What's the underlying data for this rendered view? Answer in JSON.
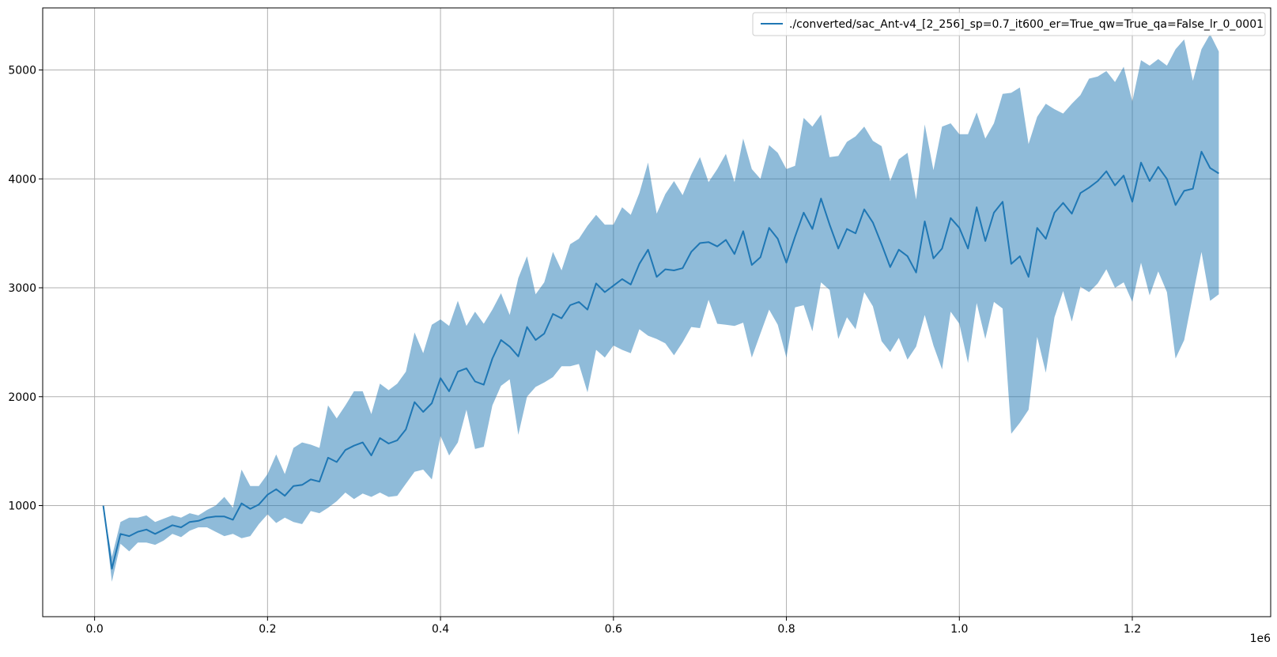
{
  "chart_data": {
    "type": "line",
    "title": "",
    "xlabel": "",
    "ylabel": "",
    "x_offset_label": "1e6",
    "xlim": [
      -0.06,
      1.36
    ],
    "ylim": [
      -20,
      5570
    ],
    "xticks": [
      0.0,
      0.2,
      0.4,
      0.6,
      0.8,
      1.0,
      1.2
    ],
    "xtick_labels": [
      "0.0",
      "0.2",
      "0.4",
      "0.6",
      "0.8",
      "1.0",
      "1.2"
    ],
    "yticks": [
      1000,
      2000,
      3000,
      4000,
      5000
    ],
    "ytick_labels": [
      "1000",
      "2000",
      "3000",
      "4000",
      "5000"
    ],
    "grid": true,
    "legend_position": "top-right",
    "colors": {
      "line": "#1f77b4",
      "band": "#1f77b4",
      "grid": "#b0b0b0"
    },
    "series": [
      {
        "name": "./converted/sac_Ant-v4_[2_256]_sp=0.7_it600_er=True_qw=True_qa=False_lr_0_0001",
        "x": [
          0.01,
          0.02,
          0.03,
          0.04,
          0.05,
          0.06,
          0.07,
          0.08,
          0.09,
          0.1,
          0.11,
          0.12,
          0.13,
          0.14,
          0.15,
          0.16,
          0.17,
          0.18,
          0.19,
          0.2,
          0.21,
          0.22,
          0.23,
          0.24,
          0.25,
          0.26,
          0.27,
          0.28,
          0.29,
          0.3,
          0.31,
          0.32,
          0.33,
          0.34,
          0.35,
          0.36,
          0.37,
          0.38,
          0.39,
          0.4,
          0.41,
          0.42,
          0.43,
          0.44,
          0.45,
          0.46,
          0.47,
          0.48,
          0.49,
          0.5,
          0.51,
          0.52,
          0.53,
          0.54,
          0.55,
          0.56,
          0.57,
          0.58,
          0.59,
          0.6,
          0.61,
          0.62,
          0.63,
          0.64,
          0.65,
          0.66,
          0.67,
          0.68,
          0.69,
          0.7,
          0.71,
          0.72,
          0.73,
          0.74,
          0.75,
          0.76,
          0.77,
          0.78,
          0.79,
          0.8,
          0.81,
          0.82,
          0.83,
          0.84,
          0.85,
          0.86,
          0.87,
          0.88,
          0.89,
          0.9,
          0.91,
          0.92,
          0.93,
          0.94,
          0.95,
          0.96,
          0.97,
          0.98,
          0.99,
          1.0,
          1.01,
          1.02,
          1.03,
          1.04,
          1.05,
          1.06,
          1.07,
          1.08,
          1.09,
          1.1,
          1.11,
          1.12,
          1.13,
          1.14,
          1.15,
          1.16,
          1.17,
          1.18,
          1.19,
          1.2,
          1.21,
          1.22,
          1.23,
          1.24,
          1.25,
          1.26,
          1.27,
          1.28,
          1.29,
          1.3
        ],
        "mean": [
          1000,
          420,
          740,
          720,
          760,
          780,
          740,
          780,
          820,
          800,
          850,
          860,
          890,
          900,
          900,
          870,
          1020,
          970,
          1010,
          1100,
          1150,
          1090,
          1180,
          1190,
          1240,
          1220,
          1440,
          1400,
          1510,
          1550,
          1580,
          1460,
          1620,
          1570,
          1600,
          1700,
          1950,
          1860,
          1940,
          2170,
          2050,
          2230,
          2260,
          2140,
          2110,
          2350,
          2520,
          2460,
          2370,
          2640,
          2520,
          2580,
          2760,
          2720,
          2840,
          2870,
          2800,
          3040,
          2960,
          3020,
          3080,
          3030,
          3220,
          3350,
          3100,
          3170,
          3160,
          3180,
          3330,
          3410,
          3420,
          3380,
          3440,
          3310,
          3520,
          3210,
          3280,
          3550,
          3450,
          3230,
          3470,
          3690,
          3540,
          3820,
          3580,
          3360,
          3540,
          3500,
          3720,
          3600,
          3400,
          3190,
          3350,
          3290,
          3140,
          3610,
          3270,
          3360,
          3640,
          3550,
          3360,
          3740,
          3430,
          3690,
          3790,
          3220,
          3290,
          3100,
          3550,
          3450,
          3690,
          3780,
          3680,
          3870,
          3920,
          3980,
          4070,
          3940,
          4030,
          3790,
          4150,
          3980,
          4110,
          4000,
          3760,
          3890,
          3910,
          4250,
          4100,
          4050
        ],
        "upper": [
          1000,
          530,
          850,
          890,
          890,
          910,
          850,
          880,
          910,
          890,
          930,
          910,
          960,
          1000,
          1080,
          980,
          1330,
          1180,
          1180,
          1290,
          1470,
          1290,
          1530,
          1580,
          1560,
          1530,
          1920,
          1800,
          1920,
          2050,
          2050,
          1840,
          2120,
          2060,
          2120,
          2230,
          2590,
          2400,
          2660,
          2710,
          2650,
          2880,
          2650,
          2780,
          2670,
          2800,
          2950,
          2750,
          3090,
          3290,
          2940,
          3050,
          3330,
          3160,
          3400,
          3450,
          3570,
          3670,
          3580,
          3580,
          3740,
          3670,
          3870,
          4150,
          3680,
          3860,
          3980,
          3850,
          4040,
          4200,
          3970,
          4090,
          4230,
          3970,
          4370,
          4090,
          4000,
          4310,
          4240,
          4090,
          4120,
          4560,
          4480,
          4590,
          4200,
          4210,
          4340,
          4390,
          4480,
          4350,
          4300,
          3980,
          4180,
          4240,
          3810,
          4500,
          4080,
          4480,
          4510,
          4410,
          4410,
          4610,
          4370,
          4510,
          4780,
          4790,
          4840,
          4320,
          4570,
          4690,
          4640,
          4600,
          4690,
          4770,
          4920,
          4940,
          4990,
          4890,
          5030,
          4710,
          5090,
          5040,
          5100,
          5040,
          5190,
          5280,
          4900,
          5190,
          5330,
          5170
        ],
        "lower": [
          1000,
          300,
          650,
          580,
          660,
          660,
          640,
          680,
          740,
          710,
          770,
          800,
          800,
          760,
          720,
          740,
          700,
          720,
          830,
          920,
          840,
          890,
          850,
          830,
          950,
          930,
          980,
          1040,
          1120,
          1060,
          1110,
          1080,
          1120,
          1080,
          1090,
          1200,
          1310,
          1330,
          1240,
          1640,
          1460,
          1580,
          1880,
          1520,
          1540,
          1920,
          2100,
          2160,
          1650,
          2000,
          2090,
          2130,
          2180,
          2280,
          2280,
          2300,
          2040,
          2430,
          2360,
          2470,
          2430,
          2400,
          2620,
          2560,
          2530,
          2490,
          2380,
          2500,
          2640,
          2630,
          2890,
          2670,
          2660,
          2650,
          2680,
          2360,
          2580,
          2800,
          2660,
          2360,
          2820,
          2840,
          2600,
          3050,
          2980,
          2530,
          2730,
          2620,
          2960,
          2830,
          2510,
          2410,
          2540,
          2340,
          2460,
          2750,
          2470,
          2250,
          2780,
          2670,
          2310,
          2860,
          2530,
          2870,
          2810,
          1660,
          1760,
          1880,
          2550,
          2220,
          2730,
          2970,
          2690,
          3010,
          2960,
          3040,
          3170,
          3000,
          3050,
          2870,
          3230,
          2930,
          3150,
          2960,
          2350,
          2520,
          2930,
          3330,
          2880,
          2940
        ]
      }
    ]
  }
}
